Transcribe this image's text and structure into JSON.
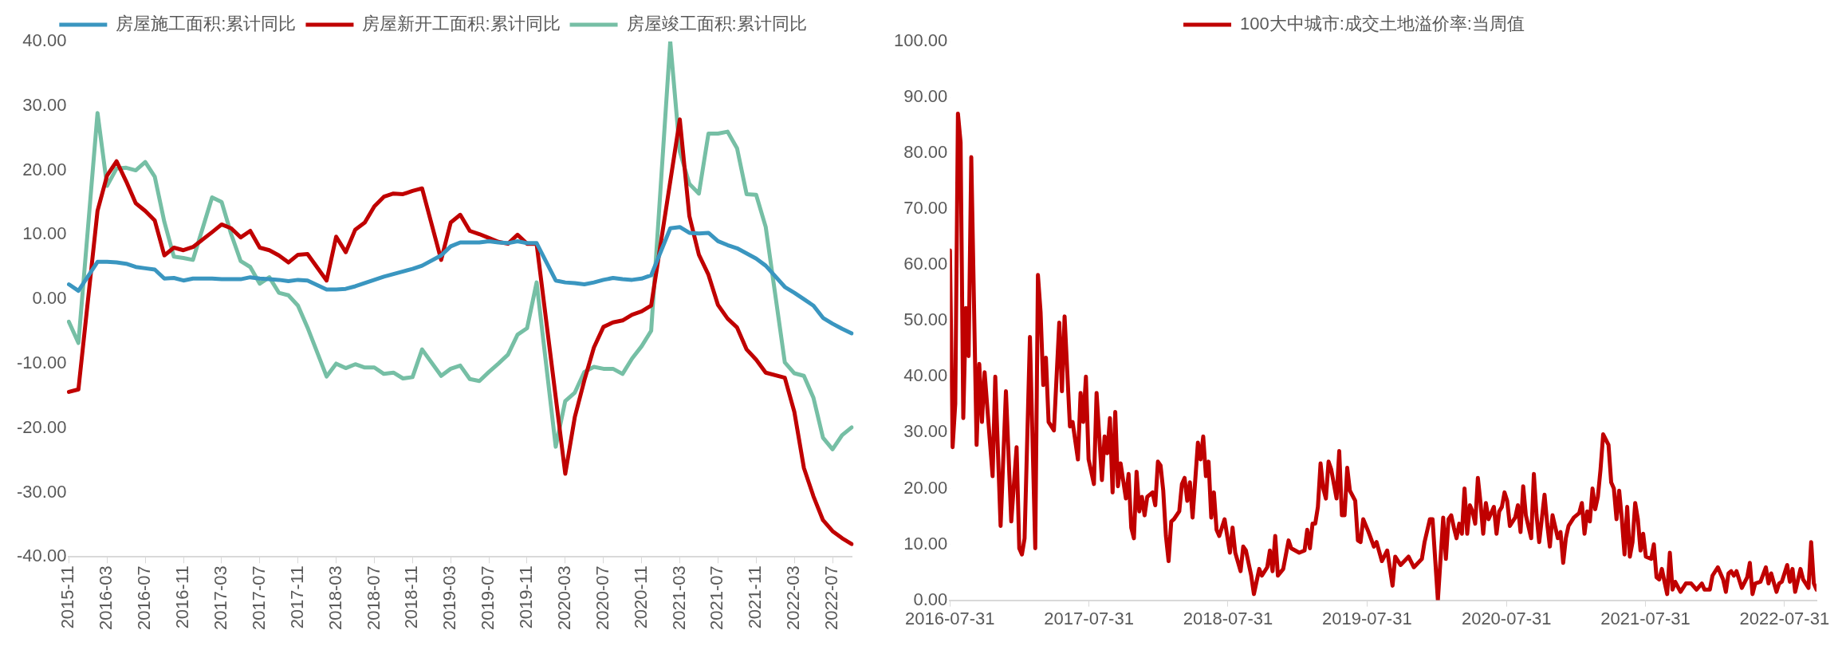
{
  "chart_data": [
    {
      "type": "line",
      "legend": "top",
      "grid": false,
      "marker": "none",
      "line_style": "solid",
      "categories": [
        "2015-11",
        null,
        null,
        null,
        "2016-03",
        null,
        null,
        null,
        "2016-07",
        null,
        null,
        null,
        "2016-11",
        null,
        null,
        null,
        "2017-03",
        null,
        null,
        null,
        "2017-07",
        null,
        null,
        null,
        "2017-11",
        null,
        null,
        null,
        "2018-03",
        null,
        null,
        null,
        "2018-07",
        null,
        null,
        null,
        "2018-11",
        null,
        null,
        null,
        "2019-03",
        null,
        null,
        null,
        "2019-07",
        null,
        null,
        null,
        "2019-11",
        null,
        null,
        null,
        "2020-03",
        null,
        null,
        null,
        "2020-07",
        null,
        null,
        null,
        "2020-11",
        null,
        null,
        null,
        "2021-03",
        null,
        null,
        null,
        "2021-07",
        null,
        null,
        null,
        "2021-11",
        null,
        null,
        null,
        "2022-03",
        null,
        null,
        null,
        "2022-07",
        null,
        null
      ],
      "ylim": [
        -40,
        40
      ],
      "yticks": [
        {
          "value": -40,
          "label": "-40.00"
        },
        {
          "value": -30,
          "label": "-30.00"
        },
        {
          "value": -20,
          "label": "-20.00"
        },
        {
          "value": -10,
          "label": "-10.00"
        },
        {
          "value": 0,
          "label": "0.00"
        },
        {
          "value": 10,
          "label": "10.00"
        },
        {
          "value": 20,
          "label": "20.00"
        },
        {
          "value": 30,
          "label": "30.00"
        },
        {
          "value": 40,
          "label": "40.00"
        }
      ],
      "series": [
        {
          "name": "房屋施工面积:累计同比",
          "color": "#3a96c0",
          "values": [
            2.3,
            1.3,
            null,
            5.8,
            5.8,
            5.7,
            5.5,
            5.0,
            4.8,
            4.6,
            3.2,
            3.3,
            2.9,
            3.2,
            null,
            3.2,
            3.1,
            3.1,
            3.1,
            3.4,
            3.2,
            3.1,
            3.0,
            2.8,
            3.0,
            2.9,
            null,
            1.5,
            1.5,
            1.6,
            2.0,
            2.5,
            3.0,
            3.5,
            3.9,
            4.3,
            4.7,
            5.2,
            null,
            6.8,
            8.2,
            8.8,
            8.8,
            8.8,
            9.0,
            8.8,
            8.7,
            9.0,
            8.7,
            8.7,
            null,
            2.9,
            2.6,
            2.5,
            2.3,
            2.6,
            3.0,
            3.3,
            3.1,
            3.0,
            3.2,
            3.7,
            null,
            11.0,
            11.2,
            10.3,
            10.2,
            10.3,
            9.0,
            8.4,
            7.9,
            7.1,
            6.3,
            5.2,
            null,
            1.9,
            1.0,
            0.0,
            -1.0,
            -2.9,
            -3.8,
            -4.6,
            -5.3
          ]
        },
        {
          "name": "房屋新开工面积:累计同比",
          "color": "#c00000",
          "values": [
            -14.4,
            -14.0,
            null,
            13.7,
            19.2,
            21.4,
            18.3,
            14.9,
            13.7,
            12.2,
            6.8,
            8.0,
            7.6,
            8.1,
            null,
            10.4,
            11.6,
            11.0,
            9.6,
            10.6,
            8.0,
            7.6,
            6.8,
            5.7,
            6.9,
            7.0,
            null,
            2.9,
            9.7,
            7.3,
            10.8,
            11.9,
            14.4,
            15.9,
            16.4,
            16.3,
            16.8,
            17.2,
            null,
            6.1,
            11.9,
            13.1,
            10.6,
            10.1,
            9.5,
            8.9,
            8.6,
            10.0,
            8.6,
            8.6,
            null,
            null,
            -27.1,
            -18.3,
            -12.6,
            -7.5,
            -4.3,
            -3.6,
            -3.3,
            -2.4,
            -1.9,
            -1.0,
            null,
            null,
            27.9,
            12.9,
            6.9,
            3.8,
            -0.9,
            -3.0,
            -4.4,
            -7.8,
            -9.4,
            -11.4,
            null,
            -12.2,
            -17.5,
            -26.2,
            -30.6,
            -34.3,
            -36.0,
            -37.1,
            -38.0
          ]
        },
        {
          "name": "房屋竣工面积:累计同比",
          "color": "#76bfa5",
          "values": [
            -3.5,
            -6.8,
            null,
            28.9,
            17.6,
            20.3,
            20.4,
            20.0,
            21.3,
            19.0,
            12.0,
            6.6,
            6.4,
            6.1,
            null,
            15.8,
            15.1,
            10.1,
            5.9,
            5.0,
            2.4,
            3.4,
            1.0,
            0.6,
            -1.0,
            -4.4,
            null,
            -12.0,
            -10.0,
            -10.7,
            -10.1,
            -10.6,
            -10.6,
            -11.6,
            -11.4,
            -12.3,
            -12.1,
            -7.8,
            null,
            -11.9,
            -10.8,
            -10.3,
            -12.4,
            -12.7,
            -11.3,
            -10.0,
            -8.6,
            -5.5,
            -4.5,
            2.6,
            null,
            -22.9,
            -15.8,
            -14.5,
            -11.3,
            -10.5,
            -10.8,
            -10.8,
            -11.6,
            -9.2,
            -7.3,
            -4.9,
            null,
            40.0,
            22.9,
            17.9,
            16.4,
            25.7,
            25.7,
            26.0,
            23.4,
            16.3,
            16.2,
            11.2,
            null,
            -9.8,
            -11.5,
            -11.9,
            -15.3,
            -21.5,
            -23.3,
            -21.1,
            -19.9
          ]
        }
      ]
    },
    {
      "type": "line",
      "legend": "top",
      "grid": false,
      "marker": "none",
      "line_style": "solid",
      "x": [
        "2016-07-31",
        "2016-08-07",
        "2016-08-14",
        "2016-08-21",
        "2016-08-28",
        "2016-09-04",
        "2016-09-11",
        "2016-09-18",
        "2016-09-25",
        "2016-10-09",
        "2016-10-16",
        "2016-10-23",
        "2016-10-30",
        "2016-11-20",
        "2016-11-27",
        "2016-12-11",
        "2016-12-25",
        "2017-01-08",
        "2017-01-22",
        "2017-01-29",
        "2017-02-05",
        "2017-02-12",
        "2017-02-26",
        "2017-03-12",
        "2017-03-19",
        "2017-03-26",
        "2017-04-02",
        "2017-04-09",
        "2017-04-16",
        "2017-04-30",
        "2017-05-14",
        "2017-05-21",
        "2017-05-28",
        "2017-06-11",
        "2017-06-18",
        "2017-07-02",
        "2017-07-09",
        "2017-07-16",
        "2017-07-23",
        "2017-07-30",
        "2017-08-13",
        "2017-08-20",
        "2017-09-03",
        "2017-09-10",
        "2017-09-17",
        "2017-09-24",
        "2017-10-01",
        "2017-10-08",
        "2017-10-15",
        "2017-10-22",
        "2017-11-05",
        "2017-11-12",
        "2017-11-19",
        "2017-11-26",
        "2017-12-03",
        "2017-12-10",
        "2017-12-17",
        "2017-12-24",
        "2017-12-31",
        "2018-01-14",
        "2018-01-21",
        "2018-01-28",
        "2018-02-04",
        "2018-02-11",
        "2018-02-18",
        "2018-02-25",
        "2018-03-04",
        "2018-03-11",
        "2018-03-25",
        "2018-04-01",
        "2018-04-08",
        "2018-04-15",
        "2018-04-22",
        "2018-04-29",
        "2018-05-13",
        "2018-05-20",
        "2018-05-27",
        "2018-06-03",
        "2018-06-10",
        "2018-06-17",
        "2018-06-24",
        "2018-07-01",
        "2018-07-08",
        "2018-07-22",
        "2018-07-29",
        "2018-08-05",
        "2018-08-12",
        "2018-08-19",
        "2018-09-02",
        "2018-09-09",
        "2018-09-16",
        "2018-09-30",
        "2018-10-07",
        "2018-10-21",
        "2018-10-28",
        "2018-11-11",
        "2018-11-18",
        "2018-11-25",
        "2018-12-02",
        "2018-12-09",
        "2018-12-23",
        "2019-01-06",
        "2019-01-13",
        "2019-02-03",
        "2019-02-17",
        "2019-02-24",
        "2019-03-03",
        "2019-03-10",
        "2019-03-17",
        "2019-03-24",
        "2019-03-31",
        "2019-04-07",
        "2019-04-14",
        "2019-04-21",
        "2019-04-28",
        "2019-05-12",
        "2019-05-19",
        "2019-05-26",
        "2019-06-02",
        "2019-06-09",
        "2019-06-16",
        "2019-06-30",
        "2019-07-07",
        "2019-07-14",
        "2019-07-21",
        "2019-08-04",
        "2019-08-18",
        "2019-08-25",
        "2019-09-08",
        "2019-09-22",
        "2019-10-06",
        "2019-10-13",
        "2019-10-27",
        "2019-11-17",
        "2019-12-01",
        "2019-12-22",
        "2019-12-29",
        "2020-01-12",
        "2020-01-19",
        "2020-02-02",
        "2020-02-16",
        "2020-02-23",
        "2020-03-01",
        "2020-03-08",
        "2020-03-15",
        "2020-03-22",
        "2020-03-29",
        "2020-04-05",
        "2020-04-12",
        "2020-04-19",
        "2020-04-26",
        "2020-05-03",
        "2020-05-10",
        "2020-05-17",
        "2020-05-24",
        "2020-05-31",
        "2020-06-07",
        "2020-06-14",
        "2020-06-28",
        "2020-07-05",
        "2020-07-12",
        "2020-07-19",
        "2020-07-26",
        "2020-08-02",
        "2020-08-09",
        "2020-08-23",
        "2020-08-30",
        "2020-09-06",
        "2020-09-13",
        "2020-09-20",
        "2020-10-04",
        "2020-10-11",
        "2020-10-18",
        "2020-10-25",
        "2020-11-08",
        "2020-11-15",
        "2020-11-22",
        "2020-11-29",
        "2020-12-13",
        "2020-12-20",
        "2020-12-27",
        "2021-01-03",
        "2021-01-10",
        "2021-01-24",
        "2021-02-07",
        "2021-02-14",
        "2021-02-21",
        "2021-02-28",
        "2021-03-07",
        "2021-03-14",
        "2021-03-21",
        "2021-03-28",
        "2021-04-04",
        "2021-04-11",
        "2021-04-25",
        "2021-05-02",
        "2021-05-09",
        "2021-05-16",
        "2021-05-23",
        "2021-05-30",
        "2021-06-06",
        "2021-06-13",
        "2021-06-20",
        "2021-06-27",
        "2021-07-04",
        "2021-07-11",
        "2021-07-18",
        "2021-07-25",
        "2021-08-01",
        "2021-08-15",
        "2021-08-22",
        "2021-08-29",
        "2021-09-05",
        "2021-09-12",
        "2021-09-19",
        "2021-09-26",
        "2021-10-03",
        "2021-10-10",
        "2021-10-17",
        "2021-10-31",
        "2021-11-14",
        "2021-11-28",
        "2021-12-12",
        "2021-12-26",
        "2022-01-02",
        "2022-01-16",
        "2022-01-23",
        "2022-02-06",
        "2022-02-20",
        "2022-02-27",
        "2022-03-06",
        "2022-03-13",
        "2022-03-20",
        "2022-03-27",
        "2022-04-10",
        "2022-04-24",
        "2022-05-01",
        "2022-05-08",
        "2022-05-15",
        "2022-05-29",
        "2022-06-12",
        "2022-06-19",
        "2022-06-26",
        "2022-07-10",
        "2022-07-17",
        "2022-07-24",
        "2022-08-07",
        "2022-08-14",
        "2022-08-21",
        "2022-08-28",
        "2022-09-11",
        "2022-09-18",
        "2022-10-02",
        "2022-10-09",
        "2022-10-16",
        "2022-10-23"
      ],
      "xlim": [
        "2016-07-31",
        "2022-10-23"
      ],
      "xticks": [
        "2016-07-31",
        "2017-07-31",
        "2018-07-31",
        "2019-07-31",
        "2020-07-31",
        "2021-07-31",
        "2022-07-31"
      ],
      "ylim": [
        0,
        100
      ],
      "yticks": [
        {
          "value": 0,
          "label": "0.00"
        },
        {
          "value": 10,
          "label": "10.00"
        },
        {
          "value": 20,
          "label": "20.00"
        },
        {
          "value": 30,
          "label": "30.00"
        },
        {
          "value": 40,
          "label": "40.00"
        },
        {
          "value": 50,
          "label": "50.00"
        },
        {
          "value": 60,
          "label": "60.00"
        },
        {
          "value": 70,
          "label": "70.00"
        },
        {
          "value": 80,
          "label": "80.00"
        },
        {
          "value": 90,
          "label": "90.00"
        },
        {
          "value": 100,
          "label": "100.00"
        }
      ],
      "series": [
        {
          "name": "100大中城市:成交土地溢价率:当周值",
          "color": "#c00000",
          "values": [
            62.6,
            27.4,
            35.2,
            87.1,
            81.9,
            32.6,
            52.3,
            43.7,
            79.3,
            27.8,
            42.3,
            31.9,
            40.8,
            22.2,
            40.0,
            13.3,
            37.4,
            14.1,
            27.4,
            9.3,
            8.2,
            11.1,
            47.1,
            9.3,
            58.2,
            51.5,
            38.5,
            43.4,
            31.9,
            30.4,
            49.7,
            37.4,
            50.8,
            31.1,
            31.9,
            25.2,
            37.1,
            31.9,
            40.0,
            25.2,
            20.8,
            37.1,
            21.5,
            29.3,
            26.3,
            32.6,
            19.3,
            33.7,
            20.4,
            24.5,
            18.2,
            22.6,
            13.0,
            11.1,
            23.0,
            15.9,
            18.5,
            15.2,
            18.5,
            19.3,
            17.0,
            24.8,
            24.1,
            19.6,
            11.5,
            7.0,
            14.1,
            14.5,
            15.9,
            20.8,
            21.9,
            17.8,
            21.1,
            14.8,
            28.2,
            25.2,
            29.3,
            22.2,
            24.8,
            14.8,
            19.3,
            12.6,
            11.5,
            14.5,
            11.5,
            8.5,
            13.0,
            8.5,
            5.2,
            9.6,
            8.9,
            4.4,
            1.1,
            5.6,
            4.4,
            5.9,
            8.9,
            5.2,
            11.5,
            4.4,
            5.6,
            10.7,
            9.3,
            8.5,
            8.9,
            12.6,
            9.3,
            13.7,
            13.7,
            16.7,
            24.5,
            20.0,
            18.2,
            24.8,
            23.4,
            18.2,
            26.7,
            15.2,
            15.2,
            23.7,
            19.6,
            17.8,
            10.7,
            10.4,
            14.5,
            12.2,
            9.6,
            10.4,
            7.0,
            8.9,
            2.6,
            7.8,
            6.3,
            7.8,
            5.9,
            7.4,
            10.4,
            14.5,
            14.5,
            0.0,
            14.8,
            7.4,
            14.5,
            15.2,
            13.0,
            11.1,
            13.7,
            11.9,
            20.0,
            11.9,
            17.0,
            15.9,
            13.7,
            21.9,
            17.4,
            11.9,
            17.4,
            14.5,
            16.7,
            11.9,
            15.9,
            16.7,
            19.3,
            17.8,
            13.3,
            14.8,
            17.0,
            12.2,
            20.4,
            15.2,
            11.1,
            22.6,
            15.2,
            10.4,
            18.9,
            13.7,
            9.6,
            15.2,
            11.1,
            12.2,
            6.7,
            11.1,
            13.3,
            14.8,
            15.6,
            17.4,
            11.9,
            15.9,
            14.1,
            20.0,
            16.3,
            18.5,
            23.4,
            29.7,
            27.8,
            21.1,
            20.0,
            14.5,
            19.6,
            14.5,
            8.2,
            16.7,
            7.8,
            10.4,
            17.4,
            14.5,
            8.9,
            11.9,
            7.8,
            7.4,
            10.0,
            4.1,
            3.7,
            5.6,
            3.3,
            1.1,
            8.5,
            1.9,
            3.3,
            1.5,
            3.0,
            3.0,
            1.9,
            3.0,
            1.9,
            1.9,
            4.4,
            5.9,
            3.7,
            1.5,
            4.8,
            5.2,
            4.4,
            5.2,
            2.2,
            4.1,
            6.7,
            1.1,
            3.0,
            3.3,
            5.9,
            3.0,
            4.8,
            1.5,
            3.0,
            3.3,
            6.3,
            3.3,
            5.6,
            1.5,
            5.6,
            3.7,
            2.2,
            10.4,
            3.0,
            1.9
          ]
        }
      ]
    }
  ]
}
